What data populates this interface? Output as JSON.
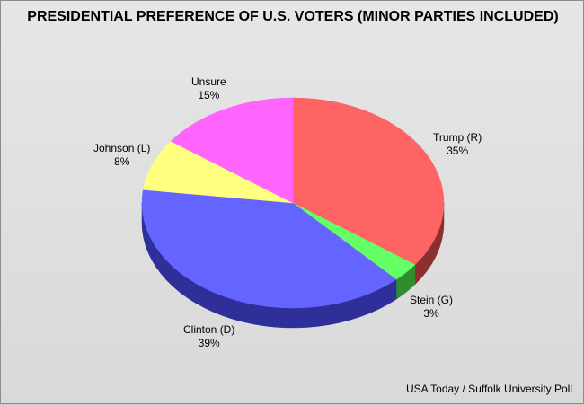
{
  "chart_data": {
    "type": "pie",
    "title": "PRESIDENTIAL PREFERENCE OF U.S. VOTERS (MINOR PARTIES INCLUDED)",
    "slices": [
      {
        "label": "Trump (R)",
        "value": 35,
        "display": "35%",
        "color": "#ff6464",
        "side_color": "#8c2f2f"
      },
      {
        "label": "Stein (G)",
        "value": 3,
        "display": "3%",
        "color": "#64ff64",
        "side_color": "#2f8c2f"
      },
      {
        "label": "Clinton (D)",
        "value": 39,
        "display": "39%",
        "color": "#6464ff",
        "side_color": "#2f2f9a"
      },
      {
        "label": "Johnson (L)",
        "value": 8,
        "display": "8%",
        "color": "#ffff80",
        "side_color": "#9a9a3f"
      },
      {
        "label": "Unsure",
        "value": 15,
        "display": "15%",
        "color": "#ff64ff",
        "side_color": "#8c2f8c"
      }
    ],
    "source": "USA Today / Suffolk University Poll"
  }
}
